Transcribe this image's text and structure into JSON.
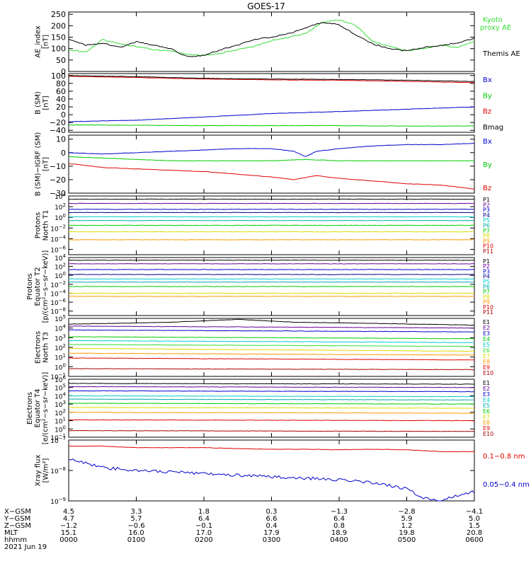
{
  "title": "GOES-17",
  "colors": {
    "axis": "#000000",
    "black": "#000000",
    "red": "#e00000",
    "blue": "#0000cc",
    "green": "#00cc00",
    "bright_green": "#33dd33",
    "navy": "#000088",
    "purple": "#660099",
    "cyan": "#00cccc",
    "teal": "#00aaaa",
    "yellow": "#dddd00",
    "orange": "#ff9900",
    "dark_red": "#aa0000"
  },
  "chart_data": [
    {
      "type": "line",
      "ylabel": "AE_index\n[nT]",
      "ylim": [
        0,
        260
      ],
      "yticks": [
        "0",
        "50",
        "100",
        "150",
        "200",
        "250"
      ],
      "xlim": [
        0,
        360
      ],
      "series": [
        {
          "name": "Kyoto\nproxy AE",
          "color": "#33dd33",
          "x": [
            0,
            15,
            30,
            45,
            60,
            75,
            90,
            105,
            120,
            135,
            150,
            165,
            180,
            195,
            210,
            225,
            240,
            255,
            270,
            285,
            300,
            315,
            330,
            345,
            360
          ],
          "y": [
            95,
            85,
            140,
            120,
            110,
            95,
            90,
            75,
            70,
            80,
            95,
            110,
            135,
            150,
            165,
            215,
            225,
            200,
            130,
            110,
            90,
            100,
            115,
            105,
            130
          ]
        },
        {
          "name": "Themis AE",
          "color": "#000000",
          "x": [
            0,
            15,
            30,
            45,
            60,
            75,
            90,
            105,
            120,
            135,
            150,
            165,
            180,
            195,
            210,
            225,
            240,
            255,
            270,
            285,
            300,
            315,
            330,
            345,
            360
          ],
          "y": [
            140,
            115,
            125,
            105,
            130,
            115,
            100,
            65,
            70,
            95,
            115,
            140,
            150,
            165,
            190,
            215,
            205,
            160,
            120,
            100,
            90,
            105,
            115,
            125,
            145
          ]
        }
      ]
    },
    {
      "type": "line",
      "ylabel": "B (SM)\n[nT]",
      "ylim": [
        -45,
        105
      ],
      "yticks": [
        "−40",
        "−20",
        "0",
        "20",
        "40",
        "60",
        "80",
        "100"
      ],
      "yvals": [
        -40,
        -20,
        0,
        20,
        40,
        60,
        80,
        100
      ],
      "xlim": [
        0,
        360
      ],
      "series": [
        {
          "name": "Bx",
          "color": "#0000cc",
          "x": [
            0,
            60,
            120,
            180,
            240,
            300,
            360
          ],
          "y": [
            -18,
            -14,
            -6,
            3,
            8,
            14,
            20
          ]
        },
        {
          "name": "By",
          "color": "#00cc00",
          "x": [
            0,
            60,
            120,
            180,
            240,
            300,
            360
          ],
          "y": [
            -26,
            -27,
            -28,
            -28,
            -28,
            -29,
            -29
          ]
        },
        {
          "name": "Bz",
          "color": "#e00000",
          "x": [
            0,
            60,
            120,
            180,
            240,
            300,
            360
          ],
          "y": [
            98,
            95,
            91,
            89,
            88,
            85,
            82
          ]
        },
        {
          "name": "Bmag",
          "color": "#000000",
          "x": [
            0,
            60,
            120,
            180,
            240,
            300,
            360
          ],
          "y": [
            100,
            97,
            93,
            91,
            90,
            88,
            85
          ]
        }
      ]
    },
    {
      "type": "line",
      "ylabel": "B (SM)−IGRF (SM)\n[nT]",
      "ylim": [
        -30,
        13
      ],
      "yticks": [
        "−30",
        "−20",
        "−10",
        "0",
        "10"
      ],
      "yvals": [
        -30,
        -20,
        -10,
        0,
        10
      ],
      "xlim": [
        0,
        360
      ],
      "series": [
        {
          "name": "Bx",
          "color": "#0000cc",
          "x": [
            0,
            30,
            60,
            90,
            120,
            150,
            180,
            200,
            210,
            220,
            240,
            270,
            300,
            330,
            360
          ],
          "y": [
            0,
            -1,
            0,
            1,
            2,
            3,
            3,
            1,
            -3,
            1,
            3,
            5,
            6,
            6,
            7
          ]
        },
        {
          "name": "By",
          "color": "#00cc00",
          "x": [
            0,
            30,
            60,
            90,
            120,
            150,
            180,
            210,
            240,
            270,
            300,
            330,
            360
          ],
          "y": [
            -3,
            -4,
            -5,
            -6,
            -6,
            -6,
            -6,
            -5,
            -6,
            -6,
            -6,
            -6,
            -6
          ]
        },
        {
          "name": "Bz",
          "color": "#e00000",
          "x": [
            0,
            30,
            60,
            90,
            120,
            150,
            180,
            200,
            220,
            240,
            270,
            300,
            330,
            360
          ],
          "y": [
            -8,
            -11,
            -12,
            -13,
            -14,
            -16,
            -18,
            -20,
            -17,
            -19,
            -21,
            -23,
            -24,
            -27
          ]
        }
      ]
    },
    {
      "type": "line",
      "scale": "log",
      "ylabel": "Protons\nNorth T1",
      "ylim_log": [
        -7,
        4
      ],
      "ytick_exps": [
        -6,
        -4,
        -2,
        0,
        2,
        4
      ],
      "xlim": [
        0,
        360
      ],
      "series": [
        {
          "name": "P1",
          "color": "#000000",
          "x": [
            0,
            360
          ],
          "y_log": [
            3.4,
            3.4
          ]
        },
        {
          "name": "P2",
          "color": "#660099",
          "x": [
            0,
            360
          ],
          "y_log": [
            2.6,
            2.6
          ]
        },
        {
          "name": "P3",
          "color": "#0000cc",
          "x": [
            0,
            360
          ],
          "y_log": [
            1.5,
            1.5
          ]
        },
        {
          "name": "P4",
          "color": "#000088",
          "x": [
            0,
            360
          ],
          "y_log": [
            0.9,
            0.9
          ]
        },
        {
          "name": "P5",
          "color": "#00cccc",
          "x": [
            0,
            360
          ],
          "y_log": [
            0.1,
            0.1
          ]
        },
        {
          "name": "P6",
          "color": "#00aaaa",
          "x": [
            0,
            360
          ],
          "y_log": [
            -0.6,
            -0.6
          ]
        },
        {
          "name": "P7",
          "color": "#00cc00",
          "x": [
            0,
            360
          ],
          "y_log": [
            -1.5,
            -1.5
          ]
        },
        {
          "name": "P8",
          "color": "#dddd00",
          "x": [
            0,
            360
          ],
          "y_log": [
            -2.7,
            -2.7
          ]
        },
        {
          "name": "P9",
          "color": "#ff9900",
          "x": [
            0,
            360
          ],
          "y_log": [
            -4.2,
            -4.2
          ]
        },
        {
          "name": "P10",
          "color": "#e00000",
          "x": [],
          "y_log": []
        },
        {
          "name": "P11",
          "color": "#aa0000",
          "x": [],
          "y_log": []
        }
      ]
    },
    {
      "type": "line",
      "scale": "log",
      "ylabel": "Protons\nEquator T2\n[p/(cm²−s−sr−keV)]",
      "ylim_log": [
        -9,
        4
      ],
      "ytick_exps": [
        -8,
        -6,
        -4,
        -2,
        0,
        2,
        4
      ],
      "xlim": [
        0,
        360
      ],
      "series": [
        {
          "name": "P1",
          "color": "#000000",
          "x": [
            0,
            360
          ],
          "y_log": [
            3.4,
            3.4
          ]
        },
        {
          "name": "P2",
          "color": "#660099",
          "x": [
            0,
            360
          ],
          "y_log": [
            2.6,
            2.6
          ]
        },
        {
          "name": "P3",
          "color": "#0000cc",
          "x": [
            0,
            360
          ],
          "y_log": [
            1.3,
            1.3
          ]
        },
        {
          "name": "P4",
          "color": "#000088",
          "x": [
            0,
            360
          ],
          "y_log": [
            0.2,
            0.2
          ]
        },
        {
          "name": "P5",
          "color": "#00cccc",
          "x": [
            0,
            360
          ],
          "y_log": [
            -0.8,
            -0.8
          ]
        },
        {
          "name": "P6",
          "color": "#00aaaa",
          "x": [
            0,
            360
          ],
          "y_log": [
            -1.5,
            -1.5
          ]
        },
        {
          "name": "P7",
          "color": "#00cc00",
          "x": [
            0,
            360
          ],
          "y_log": [
            -2.5,
            -2.5
          ]
        },
        {
          "name": "P8",
          "color": "#dddd00",
          "x": [
            0,
            360
          ],
          "y_log": [
            -4.0,
            -4.0
          ]
        },
        {
          "name": "P9",
          "color": "#ff9900",
          "x": [
            0,
            360
          ],
          "y_log": [
            -4.7,
            -4.7
          ]
        },
        {
          "name": "P10",
          "color": "#e00000",
          "x": [],
          "y_log": []
        },
        {
          "name": "P11",
          "color": "#aa0000",
          "x": [],
          "y_log": []
        }
      ]
    },
    {
      "type": "line",
      "scale": "log",
      "ylabel": "Electrons\nNorth T3",
      "ylim_log": [
        -1,
        5
      ],
      "ytick_exps": [
        -1,
        0,
        1,
        2,
        3,
        4,
        5
      ],
      "xlim": [
        0,
        360
      ],
      "series": [
        {
          "name": "E1",
          "color": "#000000",
          "x": [
            0,
            90,
            150,
            200,
            260,
            360
          ],
          "y_log": [
            4.4,
            4.6,
            4.9,
            4.6,
            4.5,
            4.3
          ]
        },
        {
          "name": "E2",
          "color": "#660099",
          "x": [
            0,
            360
          ],
          "y_log": [
            4.2,
            4.0
          ]
        },
        {
          "name": "E3",
          "color": "#0000cc",
          "x": [
            0,
            360
          ],
          "y_log": [
            3.8,
            3.6
          ]
        },
        {
          "name": "E4",
          "color": "#00cc00",
          "x": [
            0,
            360
          ],
          "y_log": [
            3.1,
            2.9
          ]
        },
        {
          "name": "E5",
          "color": "#00cccc",
          "x": [
            0,
            360
          ],
          "y_log": [
            2.7,
            2.5
          ]
        },
        {
          "name": "E6",
          "color": "#33dd33",
          "x": [
            0,
            360
          ],
          "y_log": [
            2.3,
            2.1
          ]
        },
        {
          "name": "E7",
          "color": "#dddd00",
          "x": [
            0,
            360
          ],
          "y_log": [
            1.9,
            1.6
          ]
        },
        {
          "name": "E8",
          "color": "#ff9900",
          "x": [
            0,
            360
          ],
          "y_log": [
            1.4,
            1.2
          ]
        },
        {
          "name": "E9",
          "color": "#e00000",
          "x": [
            0,
            360
          ],
          "y_log": [
            0.9,
            0.7
          ]
        },
        {
          "name": "E10",
          "color": "#aa0000",
          "x": [
            0,
            360
          ],
          "y_log": [
            -0.2,
            -0.3
          ]
        }
      ]
    },
    {
      "type": "line",
      "scale": "log",
      "ylabel": "Electrons\nEquator T4\n[e/(cm²−s−sr−keV)]",
      "ylim_log": [
        -1,
        6
      ],
      "ytick_exps": [
        -1,
        0,
        1,
        2,
        3,
        4,
        5,
        6
      ],
      "xlim": [
        0,
        360
      ],
      "series": [
        {
          "name": "E1",
          "color": "#000000",
          "x": [
            0,
            360
          ],
          "y_log": [
            5.5,
            5.4
          ]
        },
        {
          "name": "E2",
          "color": "#660099",
          "x": [
            0,
            360
          ],
          "y_log": [
            5.1,
            5.0
          ]
        },
        {
          "name": "E3",
          "color": "#0000cc",
          "x": [
            0,
            360
          ],
          "y_log": [
            4.6,
            4.5
          ]
        },
        {
          "name": "E4",
          "color": "#00cccc",
          "x": [
            0,
            360
          ],
          "y_log": [
            4.0,
            3.9
          ]
        },
        {
          "name": "E5",
          "color": "#00aaaa",
          "x": [
            0,
            360
          ],
          "y_log": [
            3.6,
            3.5
          ]
        },
        {
          "name": "E6",
          "color": "#00cc00",
          "x": [
            0,
            360
          ],
          "y_log": [
            3.1,
            3.0
          ]
        },
        {
          "name": "E7",
          "color": "#dddd00",
          "x": [
            0,
            360
          ],
          "y_log": [
            2.6,
            2.5
          ]
        },
        {
          "name": "E8",
          "color": "#ff9900",
          "x": [
            0,
            360
          ],
          "y_log": [
            2.0,
            1.9
          ]
        },
        {
          "name": "E9",
          "color": "#e00000",
          "x": [
            0,
            360
          ],
          "y_log": [
            1.1,
            1.0
          ]
        },
        {
          "name": "E10",
          "color": "#aa0000",
          "x": [
            0,
            360
          ],
          "y_log": [
            -0.2,
            -0.3
          ]
        }
      ]
    },
    {
      "type": "line",
      "scale": "log",
      "ylabel": "Xray flux\n[W/m²]",
      "ylim_log": [
        -9,
        -7
      ],
      "ytick_exps": [
        -9,
        -8,
        -7
      ],
      "xlim": [
        0,
        360
      ],
      "series": [
        {
          "name": "0.1−0.8 nm",
          "color": "#e00000",
          "x": [
            0,
            30,
            60,
            90,
            120,
            150,
            180,
            210,
            240,
            270,
            300,
            330,
            360
          ],
          "y_log": [
            -7.2,
            -7.2,
            -7.25,
            -7.25,
            -7.25,
            -7.28,
            -7.3,
            -7.3,
            -7.32,
            -7.3,
            -7.32,
            -7.38,
            -7.38
          ]
        },
        {
          "name": "0.05−0.4 nm",
          "color": "#0000cc",
          "x": [
            0,
            30,
            60,
            90,
            120,
            150,
            180,
            210,
            240,
            270,
            300,
            315,
            330,
            345,
            360
          ],
          "y_log": [
            -7.6,
            -7.9,
            -8.0,
            -8.05,
            -8.1,
            -8.15,
            -8.2,
            -8.25,
            -8.3,
            -8.4,
            -8.6,
            -8.9,
            -9.0,
            -8.8,
            -8.7
          ]
        }
      ]
    }
  ],
  "bottom_axis": {
    "row_labels": [
      "X−GSM",
      "Y−GSM",
      "Z−GSM",
      "MLT",
      "hhmm",
      "2021 Jun 19"
    ],
    "columns": [
      {
        "x": "4.5",
        "y": "4.7",
        "z": "−1.2",
        "mlt": "15.1",
        "hhmm": "0000"
      },
      {
        "x": "3.3",
        "y": "5.7",
        "z": "−0.6",
        "mlt": "16.0",
        "hhmm": "0100"
      },
      {
        "x": "1.8",
        "y": "6.4",
        "z": "−0.1",
        "mlt": "17.0",
        "hhmm": "0200"
      },
      {
        "x": "0.3",
        "y": "6.6",
        "z": "0.4",
        "mlt": "17.9",
        "hhmm": "0300"
      },
      {
        "x": "−1.3",
        "y": "6.4",
        "z": "0.8",
        "mlt": "18.9",
        "hhmm": "0400"
      },
      {
        "x": "−2.8",
        "y": "5.9",
        "z": "1.2",
        "mlt": "19.8",
        "hhmm": "0500"
      },
      {
        "x": "−4.1",
        "y": "5.0",
        "z": "1.5",
        "mlt": "20.8",
        "hhmm": "0600"
      }
    ]
  }
}
